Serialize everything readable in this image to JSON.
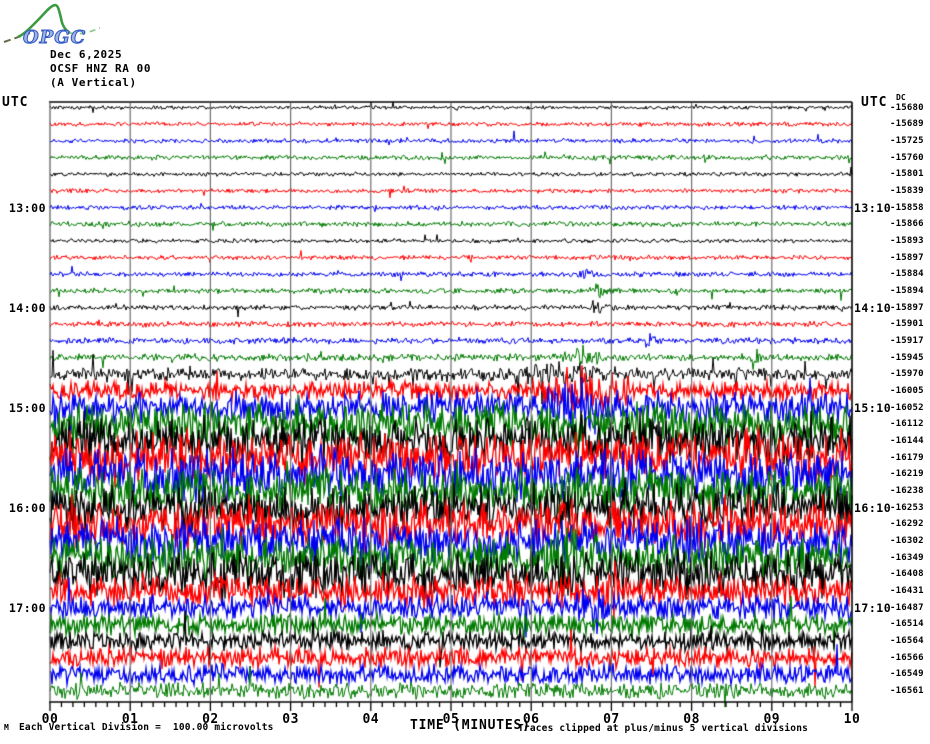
{
  "header": {
    "logo_text": "OPGC",
    "date": "Dec 6,2025",
    "station": "OCSF HNZ RA 00",
    "component": "(A Vertical)"
  },
  "axes": {
    "utc_left": "UTC",
    "utc_right": "UTC",
    "dc_label": "DC",
    "x_title": "TIME (MINUTES)",
    "x_ticks": [
      "00",
      "01",
      "02",
      "03",
      "04",
      "05",
      "06",
      "07",
      "08",
      "09",
      "10"
    ]
  },
  "footer": {
    "corner_mark": "M",
    "scale_note": "Each Vertical Division =  100.00 microvolts",
    "clip_note": "Traces clipped at plus/minus 5 vertical divisions"
  },
  "chart_data": {
    "type": "line",
    "subtype": "helicorder",
    "title": "OCSF HNZ RA 00 (A Vertical) Dec 6,2025",
    "xlabel": "TIME (MINUTES)",
    "x_range_minutes": [
      0,
      10
    ],
    "minutes_per_row": 10,
    "vertical_division_microvolts": 100.0,
    "clip_divisions": 5,
    "grid": true,
    "grid_color": "#6e6e6e",
    "trace_colors": {
      "black": "#000000",
      "red": "#fe0000",
      "blue": "#0000f0",
      "green": "#007b00"
    },
    "rows": [
      {
        "color": "black",
        "dc": -15680,
        "left": null,
        "right": null,
        "amp_div": 0.22,
        "bursts": []
      },
      {
        "color": "red",
        "dc": -15689,
        "left": null,
        "right": null,
        "amp_div": 0.27,
        "bursts": []
      },
      {
        "color": "blue",
        "dc": -15725,
        "left": null,
        "right": null,
        "amp_div": 0.27,
        "bursts": []
      },
      {
        "color": "green",
        "dc": -15760,
        "left": null,
        "right": null,
        "amp_div": 0.3,
        "bursts": []
      },
      {
        "color": "black",
        "dc": -15801,
        "left": null,
        "right": null,
        "amp_div": 0.25,
        "bursts": []
      },
      {
        "color": "red",
        "dc": -15839,
        "left": null,
        "right": null,
        "amp_div": 0.27,
        "bursts": []
      },
      {
        "color": "blue",
        "dc": -15858,
        "left": "13:00",
        "right": "13:10",
        "amp_div": 0.28,
        "bursts": []
      },
      {
        "color": "green",
        "dc": -15866,
        "left": null,
        "right": null,
        "amp_div": 0.32,
        "bursts": []
      },
      {
        "color": "black",
        "dc": -15893,
        "left": null,
        "right": null,
        "amp_div": 0.25,
        "bursts": []
      },
      {
        "color": "red",
        "dc": -15897,
        "left": null,
        "right": null,
        "amp_div": 0.28,
        "bursts": []
      },
      {
        "color": "blue",
        "dc": -15884,
        "left": null,
        "right": null,
        "amp_div": 0.3,
        "bursts": [
          {
            "min": 6.7,
            "w": 0.08,
            "amp": 0.7
          }
        ]
      },
      {
        "color": "green",
        "dc": -15894,
        "left": null,
        "right": null,
        "amp_div": 0.32,
        "bursts": [
          {
            "min": 6.85,
            "w": 0.06,
            "amp": 0.7
          }
        ]
      },
      {
        "color": "black",
        "dc": -15897,
        "left": "14:00",
        "right": "14:10",
        "amp_div": 0.32,
        "bursts": [
          {
            "min": 6.8,
            "w": 0.05,
            "amp": 0.8
          }
        ]
      },
      {
        "color": "red",
        "dc": -15901,
        "left": null,
        "right": null,
        "amp_div": 0.35,
        "bursts": []
      },
      {
        "color": "blue",
        "dc": -15917,
        "left": null,
        "right": null,
        "amp_div": 0.38,
        "bursts": [
          {
            "min": 7.5,
            "w": 0.04,
            "amp": 1.5
          }
        ]
      },
      {
        "color": "green",
        "dc": -15945,
        "left": null,
        "right": null,
        "amp_div": 0.45,
        "bursts": [
          {
            "min": 6.65,
            "w": 0.15,
            "amp": 1.0
          },
          {
            "min": 8.8,
            "w": 0.03,
            "amp": 1.8
          }
        ]
      },
      {
        "color": "black",
        "dc": -15970,
        "left": null,
        "right": null,
        "amp_div": 0.75,
        "sp": 0.05,
        "bursts": [
          {
            "min": 6.3,
            "w": 0.5,
            "amp": 0.5
          }
        ]
      },
      {
        "color": "red",
        "dc": -16005,
        "left": null,
        "right": null,
        "amp_div": 1.1,
        "bursts": [
          {
            "min": 6.7,
            "w": 0.3,
            "amp": 2.2
          }
        ]
      },
      {
        "color": "blue",
        "dc": -16052,
        "left": "15:00",
        "right": "15:10",
        "amp_div": 1.8,
        "bursts": [
          {
            "min": 6.6,
            "w": 0.2,
            "amp": 2.7
          }
        ]
      },
      {
        "color": "green",
        "dc": -16112,
        "left": null,
        "right": null,
        "amp_div": 2.5,
        "bursts": []
      },
      {
        "color": "black",
        "dc": -16144,
        "left": null,
        "right": null,
        "amp_div": 2.8,
        "bursts": []
      },
      {
        "color": "red",
        "dc": -16179,
        "left": null,
        "right": null,
        "amp_div": 3.0,
        "bursts": []
      },
      {
        "color": "blue",
        "dc": -16219,
        "left": null,
        "right": null,
        "amp_div": 3.0,
        "bursts": []
      },
      {
        "color": "green",
        "dc": -16238,
        "left": null,
        "right": null,
        "amp_div": 2.7,
        "bursts": []
      },
      {
        "color": "black",
        "dc": -16253,
        "left": "16:00",
        "right": "16:10",
        "amp_div": 2.7,
        "bursts": []
      },
      {
        "color": "red",
        "dc": -16292,
        "left": null,
        "right": null,
        "amp_div": 2.8,
        "bursts": []
      },
      {
        "color": "blue",
        "dc": -16302,
        "left": null,
        "right": null,
        "amp_div": 2.7,
        "bursts": []
      },
      {
        "color": "green",
        "dc": -16349,
        "left": null,
        "right": null,
        "amp_div": 2.5,
        "bursts": [
          {
            "min": 6.4,
            "w": 0.12,
            "amp": 3.7
          }
        ]
      },
      {
        "color": "black",
        "dc": -16408,
        "left": null,
        "right": null,
        "amp_div": 2.8,
        "bursts": []
      },
      {
        "color": "red",
        "dc": -16431,
        "left": null,
        "right": null,
        "amp_div": 1.9,
        "bursts": [
          {
            "min": 7.05,
            "w": 0.03,
            "amp": 2.5
          }
        ]
      },
      {
        "color": "blue",
        "dc": -16487,
        "left": "17:00",
        "right": "17:10",
        "amp_div": 1.4,
        "bursts": [
          {
            "min": 6.75,
            "w": 0.12,
            "amp": 2.0
          }
        ]
      },
      {
        "color": "green",
        "dc": -16514,
        "left": null,
        "right": null,
        "amp_div": 1.25,
        "bursts": []
      },
      {
        "color": "black",
        "dc": -16564,
        "left": null,
        "right": null,
        "amp_div": 1.15,
        "bursts": []
      },
      {
        "color": "red",
        "dc": -16566,
        "left": null,
        "right": null,
        "amp_div": 1.2,
        "bursts": []
      },
      {
        "color": "blue",
        "dc": -16549,
        "left": null,
        "right": null,
        "amp_div": 1.15,
        "bursts": []
      },
      {
        "color": "green",
        "dc": -16561,
        "left": null,
        "right": null,
        "amp_div": 0.95,
        "bursts": []
      }
    ]
  }
}
